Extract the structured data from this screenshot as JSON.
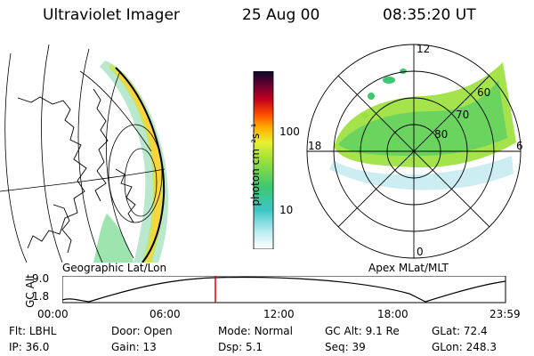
{
  "header": {
    "instrument": "Ultraviolet Imager",
    "date": "25 Aug 00",
    "time": "08:35:20 UT"
  },
  "colorbar": {
    "label": "photon cm⁻²s⁻¹",
    "ticks": [
      "100",
      "10"
    ]
  },
  "left_panel": {
    "caption": "Geographic Lat/Lon"
  },
  "polar_panel": {
    "caption": "Apex MLat/MLT",
    "mlt_labels": {
      "top": "12",
      "bottom": "0",
      "left": "18",
      "right": "6"
    },
    "lat_labels": [
      "60",
      "70",
      "80"
    ]
  },
  "altitude_plot": {
    "ylabel": "GC Alt",
    "yticks": [
      "9.0",
      "1.8"
    ],
    "xticks": [
      "00:00",
      "06:00",
      "12:00",
      "18:00",
      "23:59"
    ],
    "marker_color": "#e00000"
  },
  "status": {
    "row1": [
      {
        "label": "Flt:",
        "value": "LBHL"
      },
      {
        "label": "Door:",
        "value": "Open"
      },
      {
        "label": "Mode:",
        "value": "Normal"
      },
      {
        "label": "GC Alt:",
        "value": "9.1 Re"
      },
      {
        "label": "GLat:",
        "value": "72.4"
      }
    ],
    "row2": [
      {
        "label": "IP:",
        "value": "36.0"
      },
      {
        "label": "Gain:",
        "value": "13"
      },
      {
        "label": "Dsp:",
        "value": "5.1"
      },
      {
        "label": "Seq:",
        "value": "39"
      },
      {
        "label": "GLon:",
        "value": "248.3"
      }
    ]
  }
}
